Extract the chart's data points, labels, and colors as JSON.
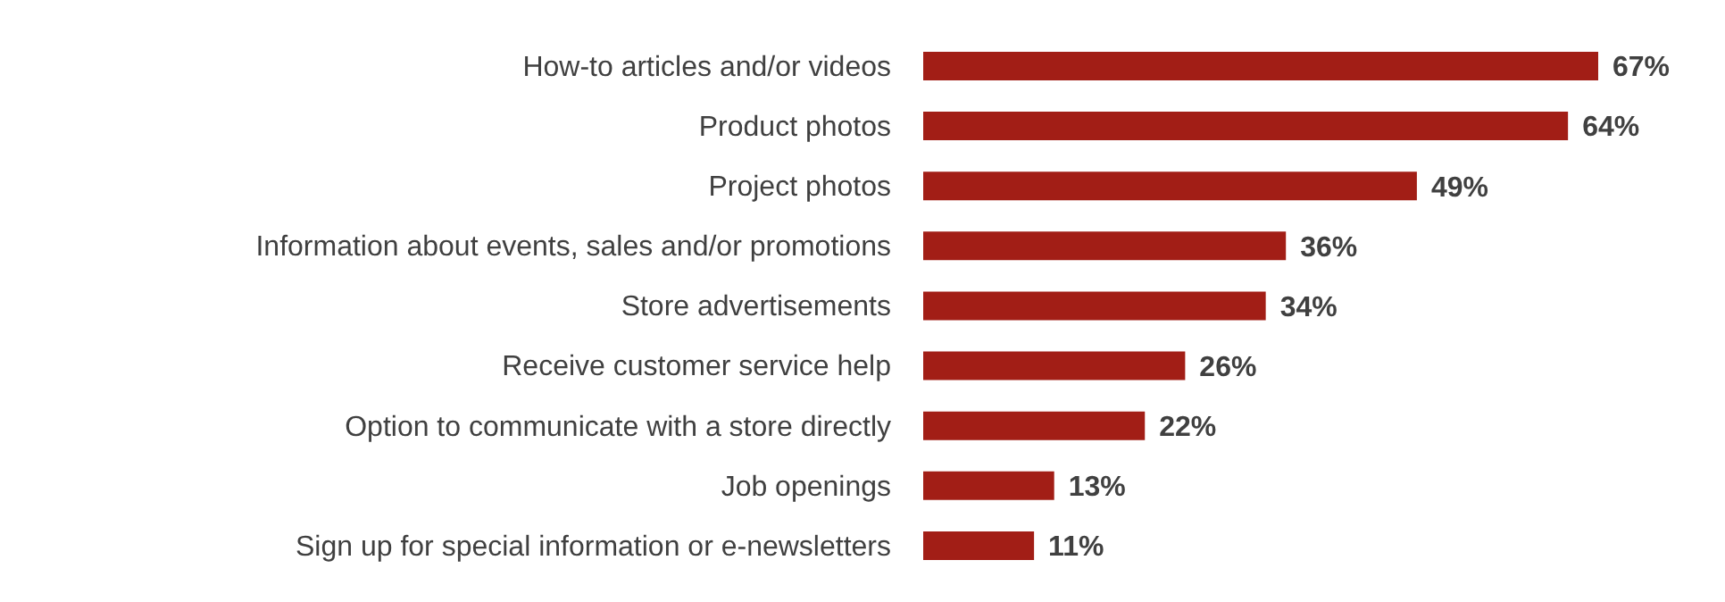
{
  "chart_data": {
    "type": "bar",
    "orientation": "horizontal",
    "categories": [
      "How-to articles and/or videos",
      "Product photos",
      "Project photos",
      "Information about events, sales and/or promotions",
      "Store advertisements",
      "Receive customer service help",
      "Option to communicate with a store directly",
      "Job openings",
      "Sign up for special information or e-newsletters"
    ],
    "values": [
      67,
      64,
      49,
      36,
      34,
      26,
      22,
      13,
      11
    ],
    "value_labels": [
      "67%",
      "64%",
      "49%",
      "36%",
      "34%",
      "26%",
      "22%",
      "13%",
      "11%"
    ],
    "color": "#a21e16",
    "grid": false,
    "legend": false
  }
}
